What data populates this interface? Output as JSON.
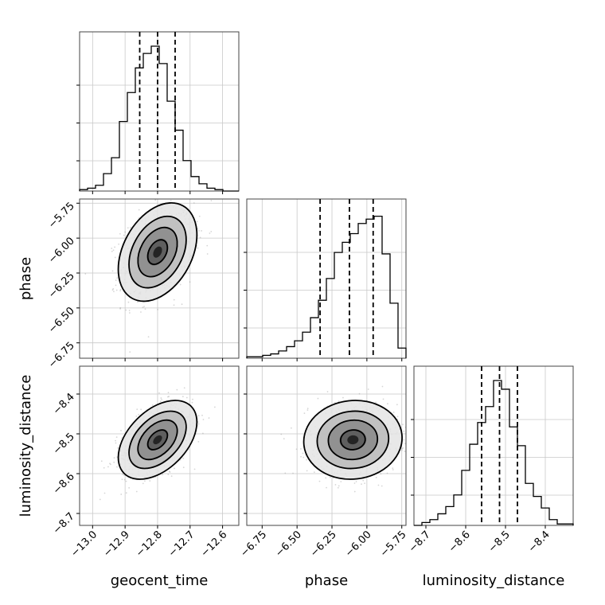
{
  "chart_data": {
    "type": "corner",
    "grid": true,
    "parameters": [
      {
        "name": "geocent_time",
        "range": [
          -13.04,
          -12.55
        ],
        "ticks": [
          -13.0,
          -12.9,
          -12.8,
          -12.7,
          -12.6
        ],
        "tick_labels": [
          "−13.0",
          "−12.9",
          "−12.8",
          "−12.7",
          "−12.6"
        ],
        "quantiles": [
          -12.855,
          -12.8,
          -12.746
        ],
        "mean": -12.8,
        "sd": 0.055
      },
      {
        "name": "phase",
        "range": [
          -6.86,
          -5.72
        ],
        "ticks": [
          -6.75,
          -6.5,
          -6.25,
          -6.0,
          -5.75
        ],
        "tick_labels": [
          "−6.75",
          "−6.50",
          "−6.25",
          "−6.00",
          "−5.75"
        ],
        "quantiles": [
          -6.335,
          -6.125,
          -5.955
        ],
        "mean": -6.1,
        "sd": 0.16
      },
      {
        "name": "luminosity_distance",
        "range": [
          -8.73,
          -8.33
        ],
        "ticks": [
          -8.7,
          -8.6,
          -8.5,
          -8.4
        ],
        "tick_labels": [
          "−8.7",
          "−8.6",
          "−8.5",
          "−8.4"
        ],
        "quantiles": [
          -8.56,
          -8.515,
          -8.47
        ],
        "mean": -8.515,
        "sd": 0.045
      }
    ],
    "histograms": [
      [
        0.01,
        0.02,
        0.04,
        0.12,
        0.23,
        0.48,
        0.68,
        0.85,
        0.95,
        1.0,
        0.88,
        0.62,
        0.42,
        0.21,
        0.1,
        0.05,
        0.02,
        0.01,
        0.0,
        0.0
      ],
      [
        0.01,
        0.01,
        0.02,
        0.03,
        0.05,
        0.08,
        0.12,
        0.18,
        0.28,
        0.4,
        0.55,
        0.73,
        0.8,
        0.86,
        0.93,
        0.96,
        0.98,
        0.72,
        0.38,
        0.07
      ],
      [
        0.0,
        0.02,
        0.04,
        0.08,
        0.13,
        0.21,
        0.38,
        0.56,
        0.71,
        0.82,
        1.0,
        0.94,
        0.68,
        0.55,
        0.29,
        0.2,
        0.12,
        0.04,
        0.01,
        0.01
      ]
    ],
    "correlations": {
      "geocent_time|phase": 0.35,
      "geocent_time|luminosity_distance": 0.45,
      "phase|luminosity_distance": 0.05
    }
  }
}
